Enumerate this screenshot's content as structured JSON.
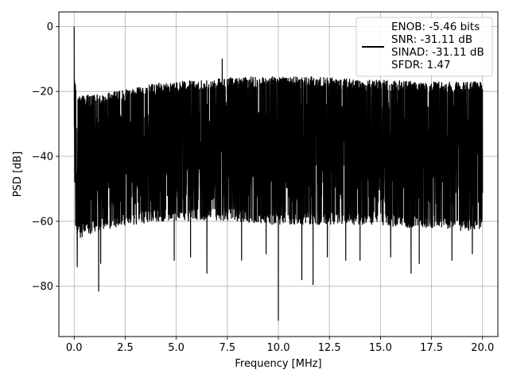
{
  "chart_data": {
    "type": "line",
    "title": "",
    "xlabel": "Frequency [MHz]",
    "ylabel": "PSD [dB]",
    "xlim": [
      -0.75,
      20.75
    ],
    "ylim": [
      -95.5,
      4.5
    ],
    "xticks": [
      0.0,
      2.5,
      5.0,
      7.5,
      10.0,
      12.5,
      15.0,
      17.5,
      20.0
    ],
    "xtick_labels": [
      "0.0",
      "2.5",
      "5.0",
      "7.5",
      "10.0",
      "12.5",
      "15.0",
      "17.5",
      "20.0"
    ],
    "yticks": [
      0,
      -20,
      -40,
      -60,
      -80
    ],
    "ytick_labels": [
      "0",
      "−20",
      "−40",
      "−60",
      "−80"
    ],
    "grid": true,
    "legend": {
      "placement": "top-right",
      "entries": [
        "ENOB: -5.46 bits",
        "SNR: -31.11 dB",
        "SINAD: -31.11 dB",
        "SFDR: 1.47"
      ]
    },
    "series": [
      {
        "color": "#000000",
        "x_range": [
          0.0,
          20.0
        ],
        "envelope": {
          "x": [
            0.0,
            0.1,
            0.3,
            0.7,
            1.2,
            2.0,
            3.0,
            4.0,
            5.0,
            6.0,
            7.0,
            8.0,
            9.0,
            10.0,
            11.0,
            12.0,
            13.0,
            14.0,
            15.0,
            16.0,
            17.0,
            18.0,
            19.0,
            20.0
          ],
          "upper": [
            -12,
            -20,
            -21,
            -21,
            -21,
            -20,
            -19,
            -17.5,
            -17,
            -16.5,
            -16,
            -15.5,
            -15.5,
            -15.5,
            -15.5,
            -15.5,
            -16,
            -16.5,
            -16.5,
            -16.5,
            -17,
            -17,
            -17,
            -17
          ],
          "lower": [
            -60,
            -64,
            -65,
            -64,
            -63,
            -62,
            -61,
            -60,
            -60,
            -60,
            -60,
            -60,
            -61,
            -61,
            -61,
            -61,
            -61,
            -61,
            -61,
            -62,
            -62,
            -62,
            -63,
            -63
          ]
        },
        "spikes": [
          {
            "x": 0.0,
            "y": 0.0
          },
          {
            "x": 7.25,
            "y": -10
          },
          {
            "x": 1.2,
            "y": -81.5
          },
          {
            "x": 10.0,
            "y": -90.5
          },
          {
            "x": 11.15,
            "y": -78
          },
          {
            "x": 11.7,
            "y": -79.5
          },
          {
            "x": 6.5,
            "y": -76
          },
          {
            "x": 16.5,
            "y": -76
          },
          {
            "x": 1.3,
            "y": -73
          },
          {
            "x": 0.15,
            "y": -74
          },
          {
            "x": 4.9,
            "y": -72
          },
          {
            "x": 8.2,
            "y": -72
          },
          {
            "x": 5.7,
            "y": -71
          },
          {
            "x": 9.4,
            "y": -70
          },
          {
            "x": 12.4,
            "y": -71
          },
          {
            "x": 13.3,
            "y": -72
          },
          {
            "x": 14.0,
            "y": -72
          },
          {
            "x": 15.5,
            "y": -71
          },
          {
            "x": 16.9,
            "y": -73
          },
          {
            "x": 18.5,
            "y": -72
          },
          {
            "x": 19.5,
            "y": -70
          }
        ]
      }
    ]
  }
}
